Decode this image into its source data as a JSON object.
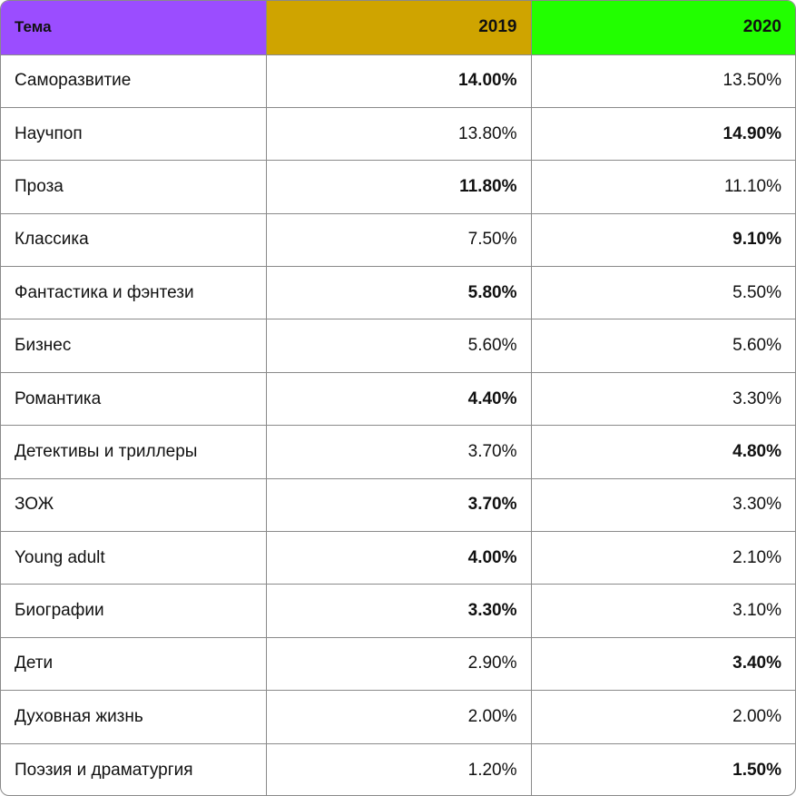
{
  "colors": {
    "header_topic_bg": "#9b4dff",
    "header_2019_bg": "#cfa400",
    "header_2020_bg": "#22ff00",
    "border": "#8a8a8a"
  },
  "header": {
    "topic": "Тема",
    "year_2019": "2019",
    "year_2020": "2020"
  },
  "rows": [
    {
      "topic": "Саморазвитие",
      "v2019": "14.00%",
      "v2020": "13.50%",
      "bold2019": true,
      "bold2020": false
    },
    {
      "topic": "Научпоп",
      "v2019": "13.80%",
      "v2020": "14.90%",
      "bold2019": false,
      "bold2020": true
    },
    {
      "topic": "Проза",
      "v2019": "11.80%",
      "v2020": "11.10%",
      "bold2019": true,
      "bold2020": false
    },
    {
      "topic": "Классика",
      "v2019": "7.50%",
      "v2020": "9.10%",
      "bold2019": false,
      "bold2020": true
    },
    {
      "topic": "Фантастика и фэнтези",
      "v2019": "5.80%",
      "v2020": "5.50%",
      "bold2019": true,
      "bold2020": false
    },
    {
      "topic": "Бизнес",
      "v2019": "5.60%",
      "v2020": "5.60%",
      "bold2019": false,
      "bold2020": false
    },
    {
      "topic": "Романтика",
      "v2019": "4.40%",
      "v2020": "3.30%",
      "bold2019": true,
      "bold2020": false
    },
    {
      "topic": "Детективы и триллеры",
      "v2019": "3.70%",
      "v2020": "4.80%",
      "bold2019": false,
      "bold2020": true
    },
    {
      "topic": "ЗОЖ",
      "v2019": "3.70%",
      "v2020": "3.30%",
      "bold2019": true,
      "bold2020": false
    },
    {
      "topic": "Young adult",
      "v2019": "4.00%",
      "v2020": "2.10%",
      "bold2019": true,
      "bold2020": false
    },
    {
      "topic": "Биографии",
      "v2019": "3.30%",
      "v2020": "3.10%",
      "bold2019": true,
      "bold2020": false
    },
    {
      "topic": "Дети",
      "v2019": "2.90%",
      "v2020": "3.40%",
      "bold2019": false,
      "bold2020": true
    },
    {
      "topic": "Духовная жизнь",
      "v2019": "2.00%",
      "v2020": "2.00%",
      "bold2019": false,
      "bold2020": false
    },
    {
      "topic": "Поэзия и драматургия",
      "v2019": "1.20%",
      "v2020": "1.50%",
      "bold2019": false,
      "bold2020": true
    }
  ]
}
